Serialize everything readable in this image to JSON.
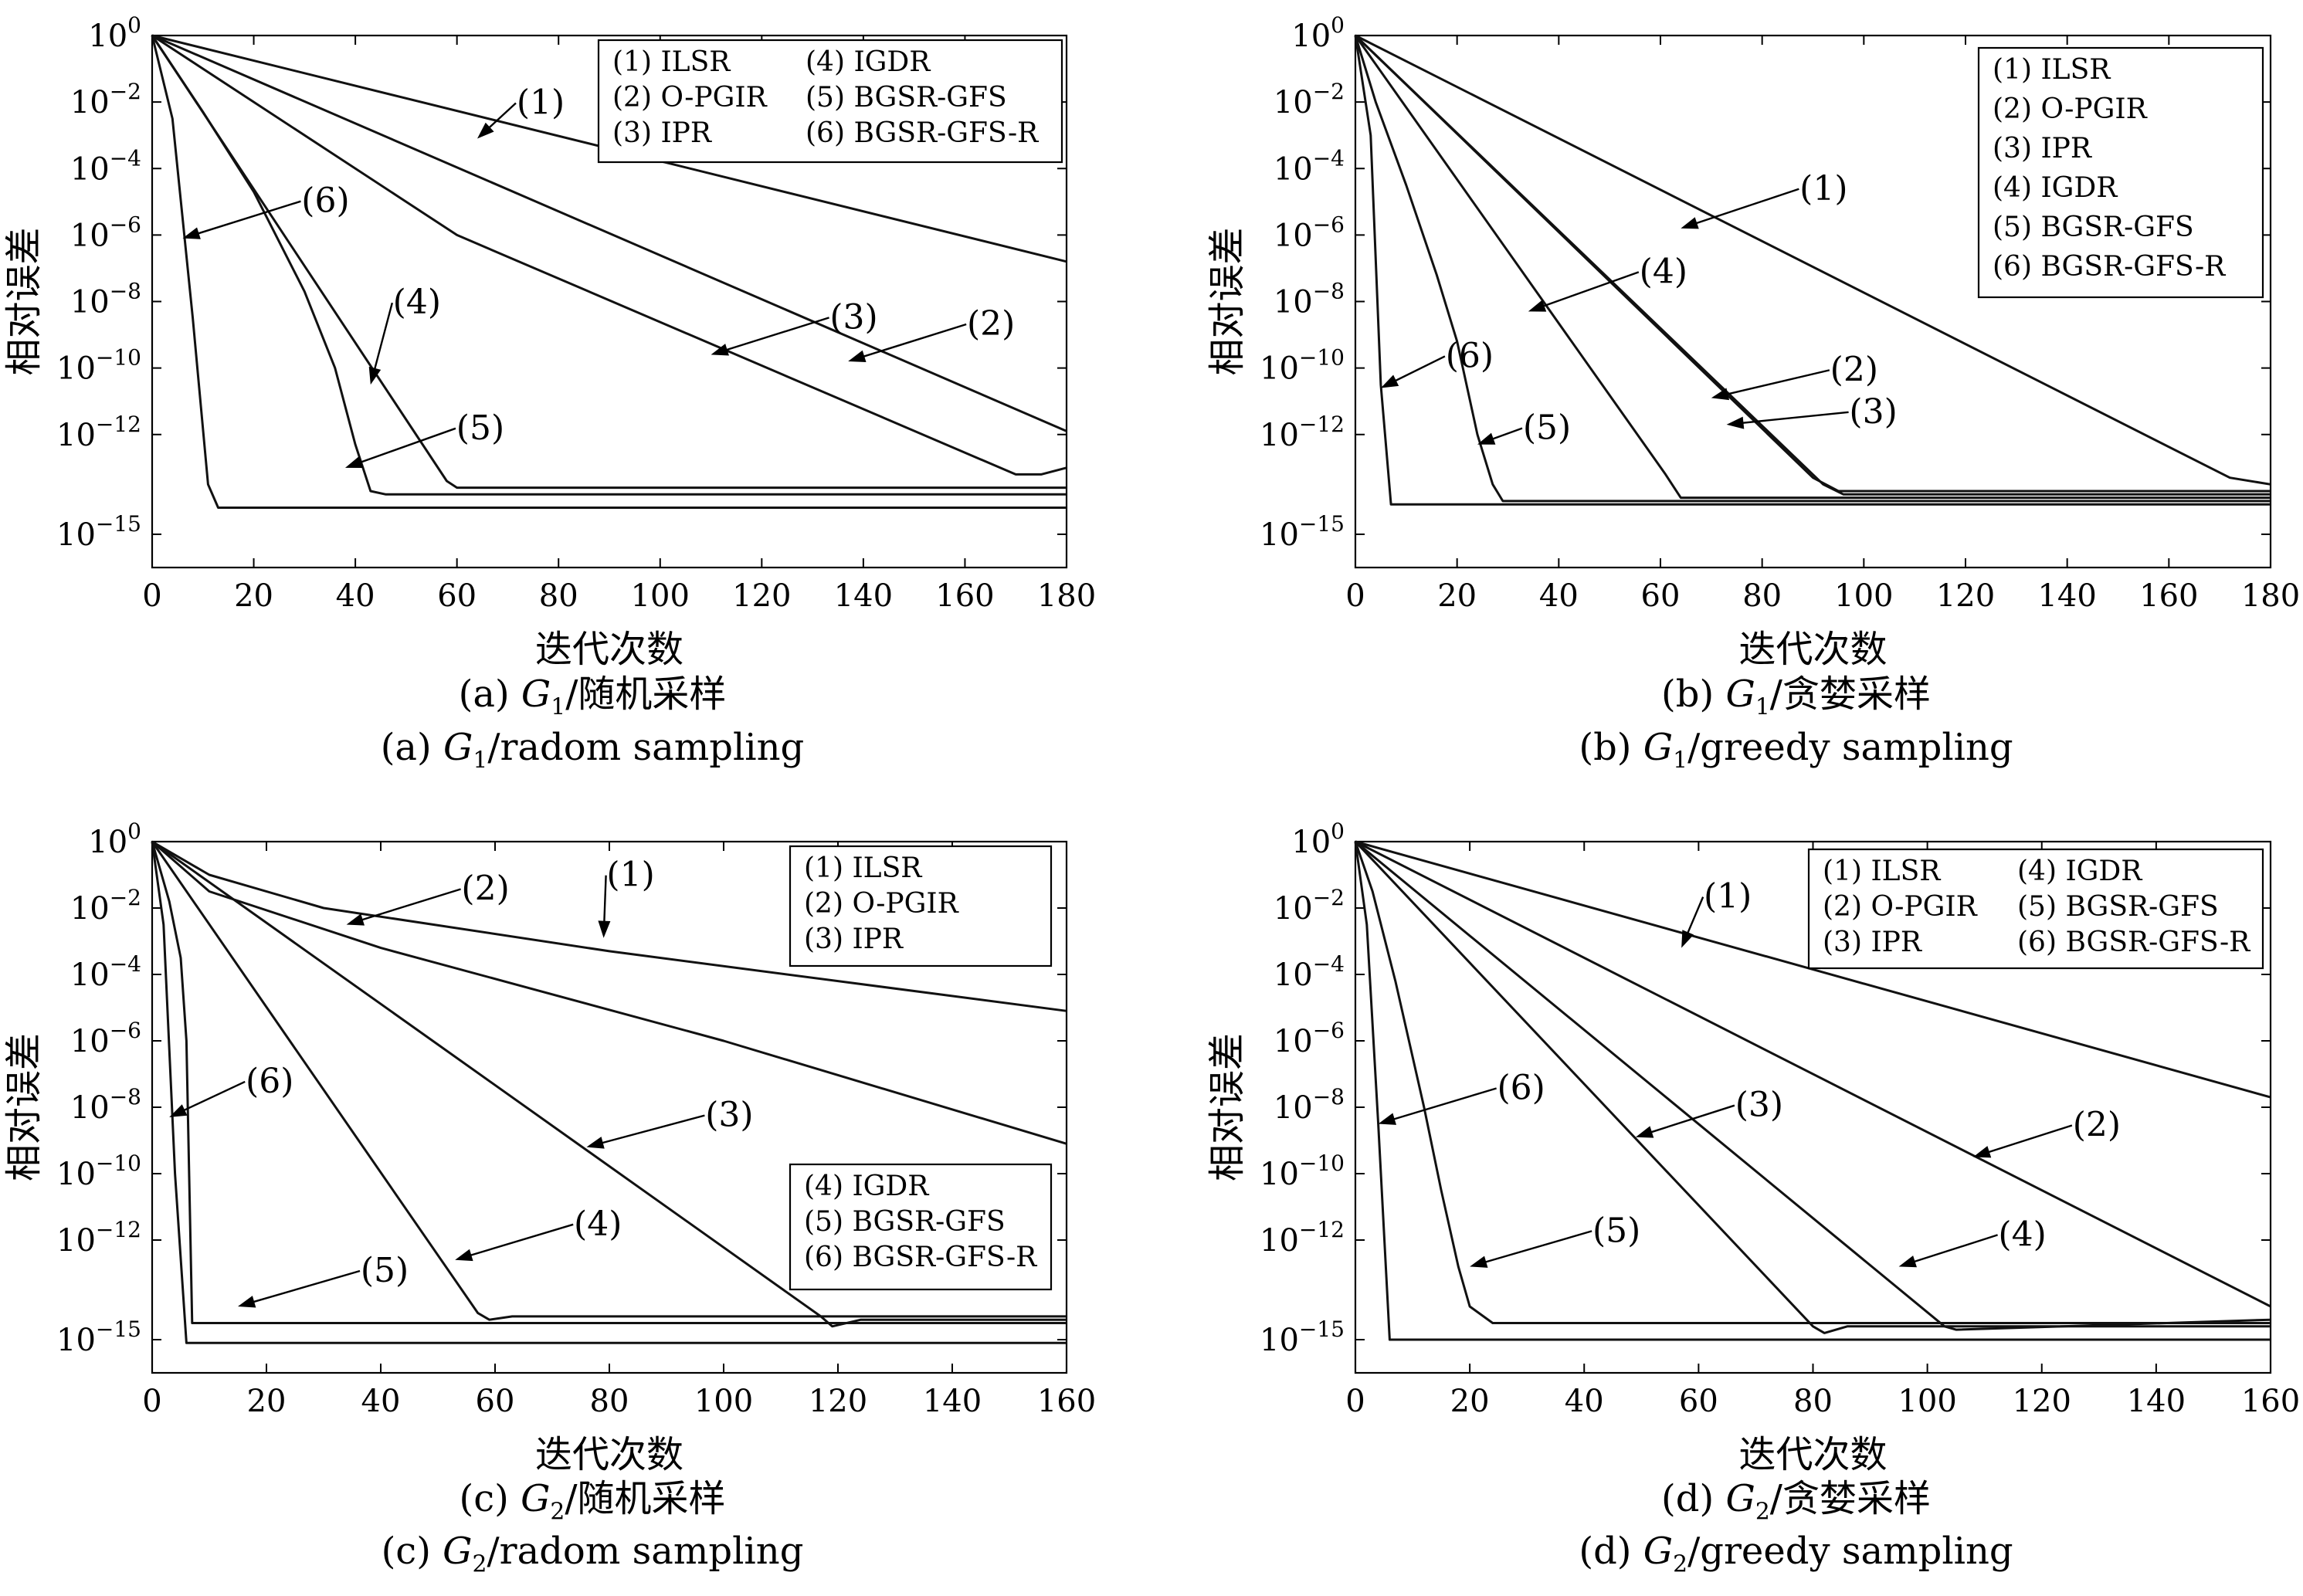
{
  "chart_data": [
    {
      "type": "line",
      "panel": "a",
      "caption_cn": "(a) G1/随机采样",
      "caption_en": "(a) G1/radom sampling",
      "xlabel": "迭代次数",
      "ylabel": "相对误差",
      "xlim": [
        0,
        180
      ],
      "ylim_log10": [
        -16,
        0
      ],
      "yscale": "log",
      "xticks": [
        0,
        20,
        40,
        60,
        80,
        100,
        120,
        140,
        160,
        180
      ],
      "yticks_exp": [
        0,
        -2,
        -4,
        -6,
        -8,
        -10,
        -12,
        -15
      ],
      "legend_boxes": [
        {
          "position": "top-right",
          "columns": 2,
          "entries": [
            "(1) ILSR",
            "(4) IGDR",
            "(2) O-PGIR",
            "(5) BGSR-GFS",
            "(3) IPR",
            "(6) BGSR-GFS-R"
          ]
        }
      ],
      "series": [
        {
          "name": "(1) ILSR",
          "points": [
            [
              0,
              0
            ],
            [
              180,
              -6.8
            ]
          ]
        },
        {
          "name": "(2) O-PGIR",
          "points": [
            [
              0,
              0
            ],
            [
              180,
              -11.9
            ]
          ]
        },
        {
          "name": "(3) IPR",
          "points": [
            [
              0,
              0
            ],
            [
              60,
              -6.0
            ],
            [
              170,
              -13.2
            ],
            [
              175,
              -13.2
            ],
            [
              180,
              -13.0
            ]
          ]
        },
        {
          "name": "(4) IGDR",
          "points": [
            [
              0,
              0
            ],
            [
              58,
              -13.4
            ],
            [
              60,
              -13.6
            ],
            [
              180,
              -13.6
            ]
          ]
        },
        {
          "name": "(5) BGSR-GFS",
          "points": [
            [
              0,
              0
            ],
            [
              10,
              -2.3
            ],
            [
              20,
              -4.7
            ],
            [
              30,
              -7.7
            ],
            [
              36,
              -10.0
            ],
            [
              40,
              -12.3
            ],
            [
              43,
              -13.7
            ],
            [
              46,
              -13.8
            ],
            [
              180,
              -13.8
            ]
          ]
        },
        {
          "name": "(6) BGSR-GFS-R",
          "points": [
            [
              0,
              0
            ],
            [
              4,
              -2.5
            ],
            [
              8,
              -8.5
            ],
            [
              11,
              -13.5
            ],
            [
              13,
              -14.2
            ],
            [
              180,
              -14.2
            ]
          ]
        }
      ],
      "annotations": [
        {
          "label": "(1)",
          "point_x": 64,
          "point_y": -3.1
        },
        {
          "label": "(6)",
          "point_x": 6,
          "point_y": -6.1
        },
        {
          "label": "(3)",
          "point_x": 110,
          "point_y": -9.6
        },
        {
          "label": "(2)",
          "point_x": 137,
          "point_y": -9.8
        },
        {
          "label": "(4)",
          "point_x": 43,
          "point_y": -10.5
        },
        {
          "label": "(5)",
          "point_x": 38,
          "point_y": -13.0
        }
      ]
    },
    {
      "type": "line",
      "panel": "b",
      "caption_cn": "(b) G1/贪婪采样",
      "caption_en": "(b) G1/greedy sampling",
      "xlabel": "迭代次数",
      "ylabel": "相对误差",
      "xlim": [
        0,
        180
      ],
      "ylim_log10": [
        -16,
        0
      ],
      "yscale": "log",
      "xticks": [
        0,
        20,
        40,
        60,
        80,
        100,
        120,
        140,
        160,
        180
      ],
      "yticks_exp": [
        0,
        -2,
        -4,
        -6,
        -8,
        -10,
        -12,
        -15
      ],
      "legend_boxes": [
        {
          "position": "top-right",
          "columns": 1,
          "entries": [
            "(1) ILSR",
            "(2) O-PGIR",
            "(3) IPR",
            "(4) IGDR",
            "(5) BGSR-GFS",
            "(6) BGSR-GFS-R"
          ]
        }
      ],
      "series": [
        {
          "name": "(1) ILSR",
          "points": [
            [
              0,
              0
            ],
            [
              172,
              -13.3
            ],
            [
              180,
              -13.5
            ]
          ]
        },
        {
          "name": "(2) O-PGIR",
          "points": [
            [
              0,
              0
            ],
            [
              90,
              -13.3
            ],
            [
              95,
              -13.7
            ],
            [
              180,
              -13.7
            ]
          ]
        },
        {
          "name": "(3) IPR",
          "points": [
            [
              0,
              0
            ],
            [
              92,
              -13.5
            ],
            [
              96,
              -13.8
            ],
            [
              180,
              -13.8
            ]
          ]
        },
        {
          "name": "(4) IGDR",
          "points": [
            [
              0,
              0
            ],
            [
              61,
              -13.2
            ],
            [
              64,
              -13.9
            ],
            [
              180,
              -13.9
            ]
          ]
        },
        {
          "name": "(5) BGSR-GFS",
          "points": [
            [
              0,
              0
            ],
            [
              4,
              -2.0
            ],
            [
              10,
              -4.5
            ],
            [
              16,
              -7.2
            ],
            [
              20,
              -9.2
            ],
            [
              24,
              -12.0
            ],
            [
              27,
              -13.5
            ],
            [
              29,
              -14.0
            ],
            [
              180,
              -14.0
            ]
          ]
        },
        {
          "name": "(6) BGSR-GFS-R",
          "points": [
            [
              0,
              0
            ],
            [
              3,
              -3.0
            ],
            [
              5,
              -10.5
            ],
            [
              7,
              -14.1
            ],
            [
              180,
              -14.1
            ]
          ]
        }
      ],
      "annotations": [
        {
          "label": "(1)",
          "point_x": 64,
          "point_y": -5.8
        },
        {
          "label": "(4)",
          "point_x": 34,
          "point_y": -8.3
        },
        {
          "label": "(6)",
          "point_x": 5,
          "point_y": -10.6
        },
        {
          "label": "(2)",
          "point_x": 70,
          "point_y": -10.9
        },
        {
          "label": "(3)",
          "point_x": 73,
          "point_y": -11.7
        },
        {
          "label": "(5)",
          "point_x": 24,
          "point_y": -12.3
        }
      ]
    },
    {
      "type": "line",
      "panel": "c",
      "caption_cn": "(c) G2/随机采样",
      "caption_en": "(c) G2/radom sampling",
      "xlabel": "迭代次数",
      "ylabel": "相对误差",
      "xlim": [
        0,
        160
      ],
      "ylim_log10": [
        -16,
        0
      ],
      "yscale": "log",
      "xticks": [
        0,
        20,
        40,
        60,
        80,
        100,
        120,
        140,
        160
      ],
      "yticks_exp": [
        0,
        -2,
        -4,
        -6,
        -8,
        -10,
        -12,
        -15
      ],
      "legend_boxes": [
        {
          "position": "top-right",
          "columns": 1,
          "entries": [
            "(1) ILSR",
            "(2) O-PGIR",
            "(3) IPR"
          ]
        },
        {
          "position": "bottom-right",
          "columns": 1,
          "entries": [
            "(4) IGDR",
            "(5) BGSR-GFS",
            "(6) BGSR-GFS-R"
          ]
        }
      ],
      "series": [
        {
          "name": "(1) ILSR",
          "points": [
            [
              0,
              0
            ],
            [
              10,
              -1.0
            ],
            [
              30,
              -2.0
            ],
            [
              80,
              -3.3
            ],
            [
              160,
              -5.1
            ]
          ]
        },
        {
          "name": "(2) O-PGIR",
          "points": [
            [
              0,
              0
            ],
            [
              10,
              -1.5
            ],
            [
              40,
              -3.2
            ],
            [
              100,
              -6.0
            ],
            [
              160,
              -9.1
            ]
          ]
        },
        {
          "name": "(3) IPR",
          "points": [
            [
              0,
              0
            ],
            [
              117,
              -14.3
            ],
            [
              119,
              -14.6
            ],
            [
              124,
              -14.4
            ],
            [
              160,
              -14.4
            ]
          ]
        },
        {
          "name": "(4) IGDR",
          "points": [
            [
              0,
              0
            ],
            [
              57,
              -14.2
            ],
            [
              59,
              -14.4
            ],
            [
              63,
              -14.3
            ],
            [
              160,
              -14.3
            ]
          ]
        },
        {
          "name": "(5) BGSR-GFS",
          "points": [
            [
              0,
              0
            ],
            [
              3,
              -1.8
            ],
            [
              5,
              -3.5
            ],
            [
              6,
              -6.0
            ],
            [
              7,
              -14.5
            ],
            [
              160,
              -14.5
            ]
          ]
        },
        {
          "name": "(6) BGSR-GFS-R",
          "points": [
            [
              0,
              0
            ],
            [
              2,
              -2.5
            ],
            [
              4,
              -10.0
            ],
            [
              6,
              -15.1
            ],
            [
              160,
              -15.1
            ]
          ]
        }
      ],
      "annotations": [
        {
          "label": "(2)",
          "point_x": 34,
          "point_y": -2.5
        },
        {
          "label": "(1)",
          "point_x": 79,
          "point_y": -2.9
        },
        {
          "label": "(6)",
          "point_x": 3,
          "point_y": -8.3
        },
        {
          "label": "(3)",
          "point_x": 76,
          "point_y": -9.2
        },
        {
          "label": "(4)",
          "point_x": 53,
          "point_y": -12.6
        },
        {
          "label": "(5)",
          "point_x": 15,
          "point_y": -14.0
        }
      ]
    },
    {
      "type": "line",
      "panel": "d",
      "caption_cn": "(d) G2/贪婪采样",
      "caption_en": "(d) G2/greedy sampling",
      "xlabel": "迭代次数",
      "ylabel": "相对误差",
      "xlim": [
        0,
        160
      ],
      "ylim_log10": [
        -16,
        0
      ],
      "yscale": "log",
      "xticks": [
        0,
        20,
        40,
        60,
        80,
        100,
        120,
        140,
        160
      ],
      "yticks_exp": [
        0,
        -2,
        -4,
        -6,
        -8,
        -10,
        -12,
        -15
      ],
      "legend_boxes": [
        {
          "position": "top-right",
          "columns": 2,
          "entries": [
            "(1) ILSR",
            "(4) IGDR",
            "(2) O-PGIR",
            "(5) BGSR-GFS",
            "(3) IPR",
            "(6) BGSR-GFS-R"
          ]
        }
      ],
      "series": [
        {
          "name": "(1) ILSR",
          "points": [
            [
              0,
              0
            ],
            [
              160,
              -7.7
            ]
          ]
        },
        {
          "name": "(2) O-PGIR",
          "points": [
            [
              0,
              0
            ],
            [
              160,
              -14.0
            ]
          ]
        },
        {
          "name": "(3) IPR",
          "points": [
            [
              0,
              0
            ],
            [
              80,
              -14.6
            ],
            [
              82,
              -14.8
            ],
            [
              86,
              -14.6
            ],
            [
              160,
              -14.6
            ]
          ]
        },
        {
          "name": "(4) IGDR",
          "points": [
            [
              0,
              0
            ],
            [
              103,
              -14.6
            ],
            [
              105,
              -14.7
            ],
            [
              160,
              -14.4
            ]
          ]
        },
        {
          "name": "(5) BGSR-GFS",
          "points": [
            [
              0,
              0
            ],
            [
              3,
              -1.5
            ],
            [
              7,
              -4.2
            ],
            [
              12,
              -8.0
            ],
            [
              15,
              -10.5
            ],
            [
              18,
              -12.8
            ],
            [
              20,
              -14.0
            ],
            [
              24,
              -14.5
            ],
            [
              160,
              -14.5
            ]
          ]
        },
        {
          "name": "(6) BGSR-GFS-R",
          "points": [
            [
              0,
              0
            ],
            [
              2,
              -2.5
            ],
            [
              4,
              -8.5
            ],
            [
              6,
              -15.0
            ],
            [
              160,
              -15.0
            ]
          ]
        }
      ],
      "annotations": [
        {
          "label": "(1)",
          "point_x": 57,
          "point_y": -3.2
        },
        {
          "label": "(6)",
          "point_x": 4,
          "point_y": -8.5
        },
        {
          "label": "(3)",
          "point_x": 49,
          "point_y": -8.9
        },
        {
          "label": "(2)",
          "point_x": 108,
          "point_y": -9.5
        },
        {
          "label": "(5)",
          "point_x": 20,
          "point_y": -12.8
        },
        {
          "label": "(4)",
          "point_x": 95,
          "point_y": -12.8
        }
      ]
    }
  ]
}
